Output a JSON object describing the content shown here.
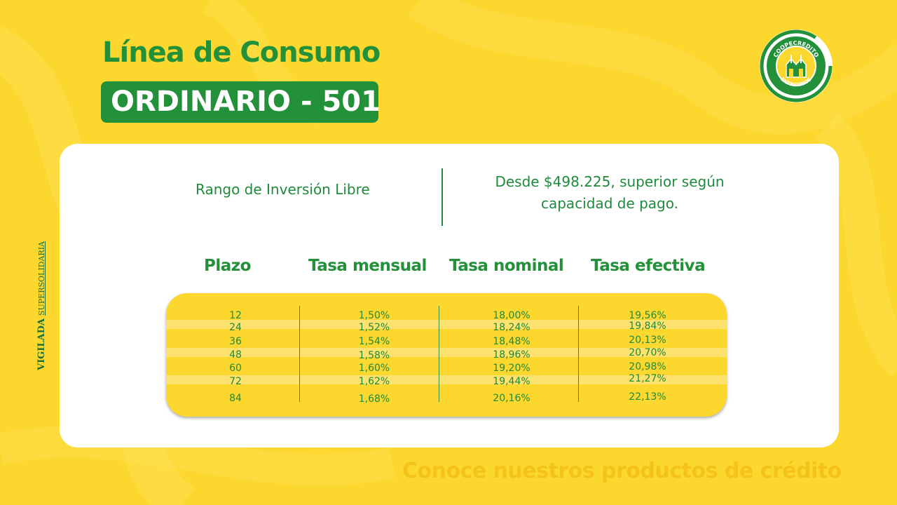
{
  "header": {
    "title": "Línea de Consumo",
    "subtitle": "ORDINARIO - 501"
  },
  "logo": {
    "top_text": "COOPECREDITO",
    "bottom_text": "ENTRERRIOS",
    "colors": {
      "green": "#23913a",
      "yellow": "#fcd72e",
      "white": "#ffffff"
    }
  },
  "side_label": {
    "main": "VIGILADA",
    "secondary": "SUPERSOLIDARIA"
  },
  "investment": {
    "label": "Rango de Inversión Libre",
    "value_line1": "Desde $498.225, superior según",
    "value_line2": "capacidad de pago."
  },
  "table": {
    "headers": [
      "Plazo",
      "Tasa mensual",
      "Tasa nominal",
      "Tasa efectiva"
    ],
    "rows": [
      [
        "12",
        "1,50%",
        "18,00%",
        "19,56%"
      ],
      [
        "24",
        "1,52%",
        "18,24%",
        "19,84%"
      ],
      [
        "36",
        "1,54%",
        "18,48%",
        "20,13%"
      ],
      [
        "48",
        "1,58%",
        "18,96%",
        "20,70%"
      ],
      [
        "60",
        "1,60%",
        "19,20%",
        "20,98%"
      ],
      [
        "72",
        "1,62%",
        "19,44%",
        "21,27%"
      ],
      [
        "84",
        "1,68%",
        "20,16%",
        "22,13%"
      ]
    ]
  },
  "footer": {
    "text": "Conoce nuestros productos de crédito"
  },
  "colors": {
    "background": "#fcd72e",
    "brand_green": "#23913a",
    "card": "#ffffff",
    "footer_text": "#f4c21a"
  }
}
